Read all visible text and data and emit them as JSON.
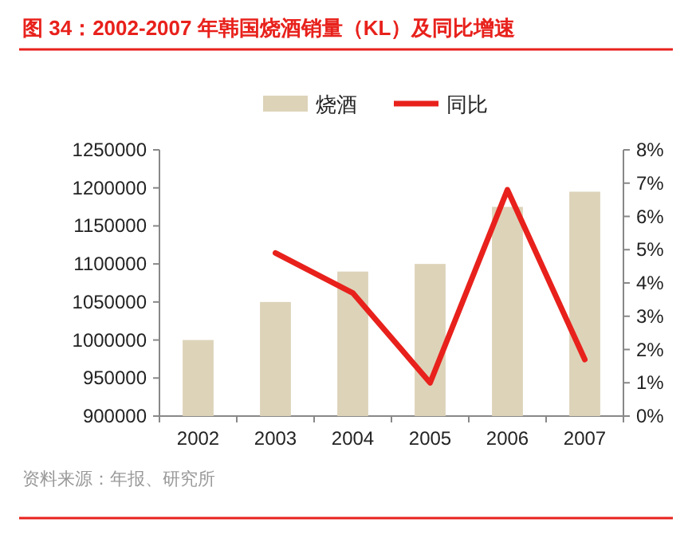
{
  "chart_data": {
    "type": "bar",
    "title": "图 34：2002-2007 年韩国烧酒销量（KL）及同比增速",
    "categories": [
      "2002",
      "2003",
      "2004",
      "2005",
      "2006",
      "2007"
    ],
    "series": [
      {
        "name": "烧酒",
        "color": "#ddd3b9",
        "values": [
          1000000,
          1050000,
          1090000,
          1100000,
          1175000,
          1195000
        ]
      },
      {
        "name": "同比",
        "type": "line",
        "axis": "y2",
        "color": "#e8211c",
        "values": [
          null,
          4.9,
          3.7,
          1.0,
          6.8,
          1.7
        ]
      }
    ],
    "ylim": [
      900000,
      1250000
    ],
    "yticks": [
      900000,
      950000,
      1000000,
      1050000,
      1100000,
      1150000,
      1200000,
      1250000
    ],
    "y2lim": [
      0,
      8
    ],
    "y2ticks": [
      {
        "value": 0,
        "label": "0%"
      },
      {
        "value": 1,
        "label": "1%"
      },
      {
        "value": 2,
        "label": "2%"
      },
      {
        "value": 3,
        "label": "3%"
      },
      {
        "value": 4,
        "label": "4%"
      },
      {
        "value": 5,
        "label": "5%"
      },
      {
        "value": 6,
        "label": "6%"
      },
      {
        "value": 7,
        "label": "7%"
      },
      {
        "value": 8,
        "label": "8%"
      }
    ],
    "legend": "top",
    "grid": false,
    "annotations": [
      "资料来源：年报、研究所"
    ]
  }
}
